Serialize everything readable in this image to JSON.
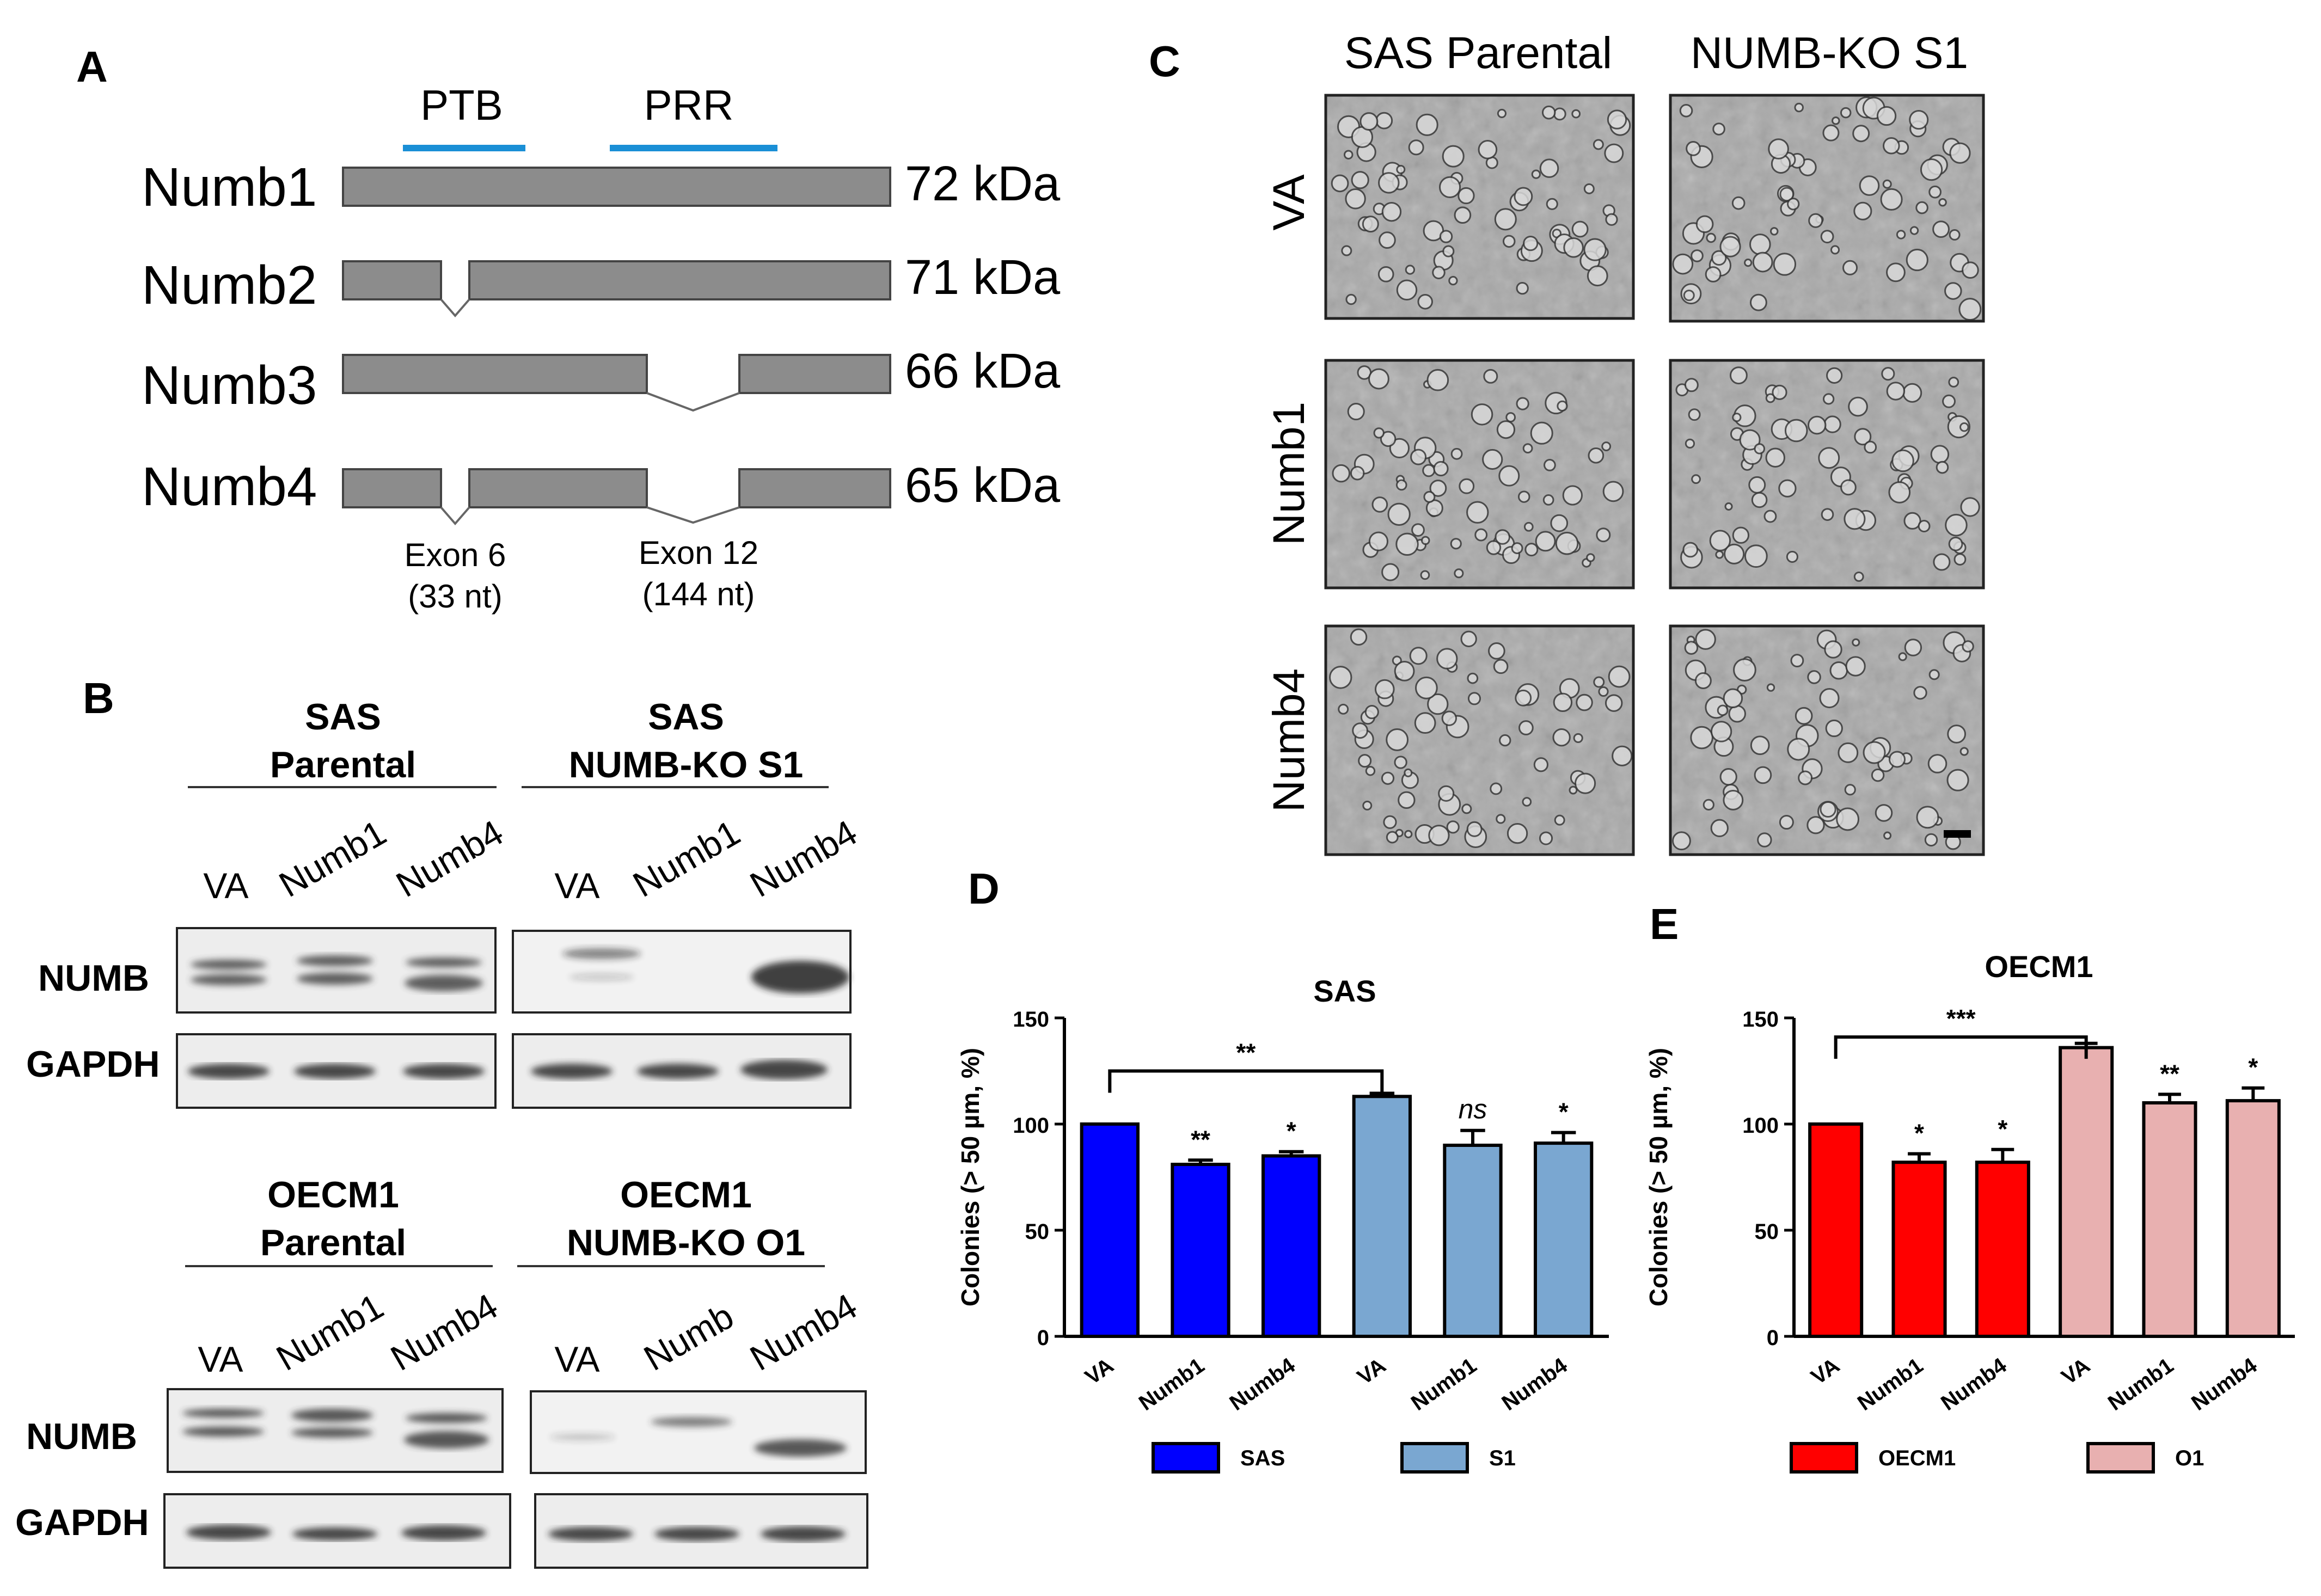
{
  "panelA": {
    "label": "A",
    "domains": [
      "PTB",
      "PRR"
    ],
    "isoforms": [
      {
        "name": "Numb1",
        "size": "72 kDa"
      },
      {
        "name": "Numb2",
        "size": "71 kDa"
      },
      {
        "name": "Numb3",
        "size": "66 kDa"
      },
      {
        "name": "Numb4",
        "size": "65 kDa"
      }
    ],
    "exon6": [
      "Exon 6",
      "(33 nt)"
    ],
    "exon12": [
      "Exon 12",
      "(144 nt)"
    ]
  },
  "panelB": {
    "label": "B",
    "groups": [
      {
        "title": [
          "SAS",
          "Parental"
        ],
        "lanes": [
          "VA",
          "Numb1",
          "Numb4"
        ]
      },
      {
        "title": [
          "SAS",
          "NUMB-KO S1"
        ],
        "lanes": [
          "VA",
          "Numb1",
          "Numb4"
        ]
      },
      {
        "title": [
          "OECM1",
          "Parental"
        ],
        "lanes": [
          "VA",
          "Numb1",
          "Numb4"
        ]
      },
      {
        "title": [
          "OECM1",
          "NUMB-KO O1"
        ],
        "lanes": [
          "VA",
          "Numb",
          "Numb4"
        ]
      }
    ],
    "blots": [
      "NUMB",
      "GAPDH"
    ]
  },
  "panelC": {
    "label": "C",
    "columns": [
      "SAS Parental",
      "NUMB-KO S1"
    ],
    "rows": [
      "VA",
      "Numb1",
      "Numb4"
    ]
  },
  "panelD": {
    "label": "D",
    "chart_data": {
      "type": "bar",
      "title": "SAS",
      "ylabel": "Colonies (> 50 µm, %)",
      "ylim": [
        0,
        150
      ],
      "yticks": [
        0,
        50,
        100,
        150
      ],
      "categories": [
        "VA",
        "Numb1",
        "Numb4",
        "VA",
        "Numb1",
        "Numb4"
      ],
      "values": [
        100,
        81,
        85,
        113,
        90,
        91
      ],
      "errors": [
        0,
        2,
        2,
        1.5,
        7,
        5
      ],
      "groups": [
        0,
        0,
        0,
        1,
        1,
        1
      ],
      "significance": [
        "",
        "**",
        "*",
        "",
        "ns",
        "*"
      ],
      "bracket": {
        "from": 0,
        "to": 3,
        "label": "**"
      },
      "legend": [
        {
          "name": "SAS",
          "color": "#0000ff"
        },
        {
          "name": "S1",
          "color": "#7aa7d1"
        }
      ]
    }
  },
  "panelE": {
    "label": "E",
    "chart_data": {
      "type": "bar",
      "title": "OECM1",
      "ylabel": "Colonies (> 50 µm, %)",
      "ylim": [
        0,
        150
      ],
      "yticks": [
        0,
        50,
        100,
        150
      ],
      "categories": [
        "VA",
        "Numb1",
        "Numb4",
        "VA",
        "Numb1",
        "Numb4"
      ],
      "values": [
        100,
        82,
        82,
        136,
        110,
        111
      ],
      "errors": [
        0,
        4,
        6,
        2,
        4,
        6
      ],
      "groups": [
        0,
        0,
        0,
        1,
        1,
        1
      ],
      "significance": [
        "",
        "*",
        "*",
        "",
        "**",
        "*"
      ],
      "bracket": {
        "from": 0,
        "to": 3,
        "label": "***"
      },
      "legend": [
        {
          "name": "OECM1",
          "color": "#ff0000"
        },
        {
          "name": "O1",
          "color": "#e8b0b0"
        }
      ]
    }
  }
}
